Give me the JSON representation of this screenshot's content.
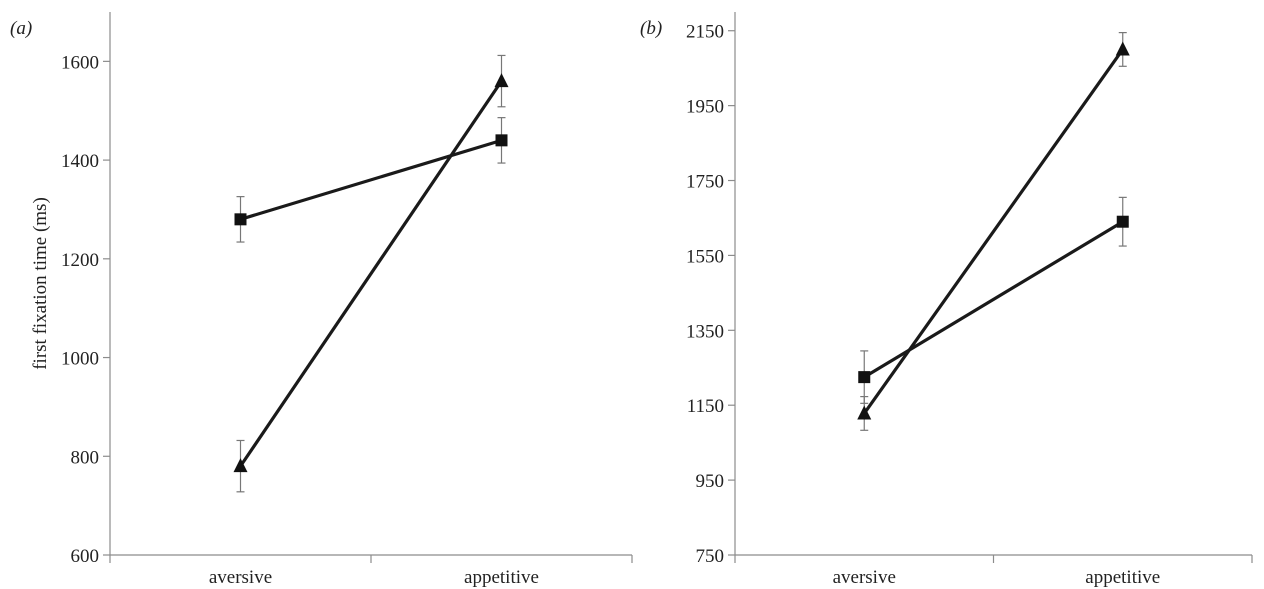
{
  "chart_data": [
    {
      "type": "line",
      "panel_label": "(a)",
      "ylabel": "first fixation time (ms)",
      "categories": [
        "aversive",
        "appetitive"
      ],
      "ylim": [
        600,
        1700
      ],
      "yticks": [
        "600",
        "800",
        "1000",
        "1200",
        "1400",
        "1600"
      ],
      "grid": false,
      "series": [
        {
          "marker": "square",
          "values": [
            1280,
            1440
          ],
          "errors": [
            46,
            46
          ]
        },
        {
          "marker": "triangle",
          "values": [
            780,
            1560
          ],
          "errors": [
            52,
            52
          ]
        }
      ]
    },
    {
      "type": "line",
      "panel_label": "(b)",
      "ylabel": "",
      "categories": [
        "aversive",
        "appetitive"
      ],
      "ylim": [
        750,
        2200
      ],
      "yticks": [
        "750",
        "950",
        "1150",
        "1350",
        "1550",
        "1750",
        "1950",
        "2150"
      ],
      "grid": false,
      "series": [
        {
          "marker": "square",
          "values": [
            1225,
            1640
          ],
          "errors": [
            70,
            65
          ]
        },
        {
          "marker": "triangle",
          "values": [
            1128,
            2100
          ],
          "errors": [
            45,
            45
          ]
        }
      ]
    }
  ]
}
